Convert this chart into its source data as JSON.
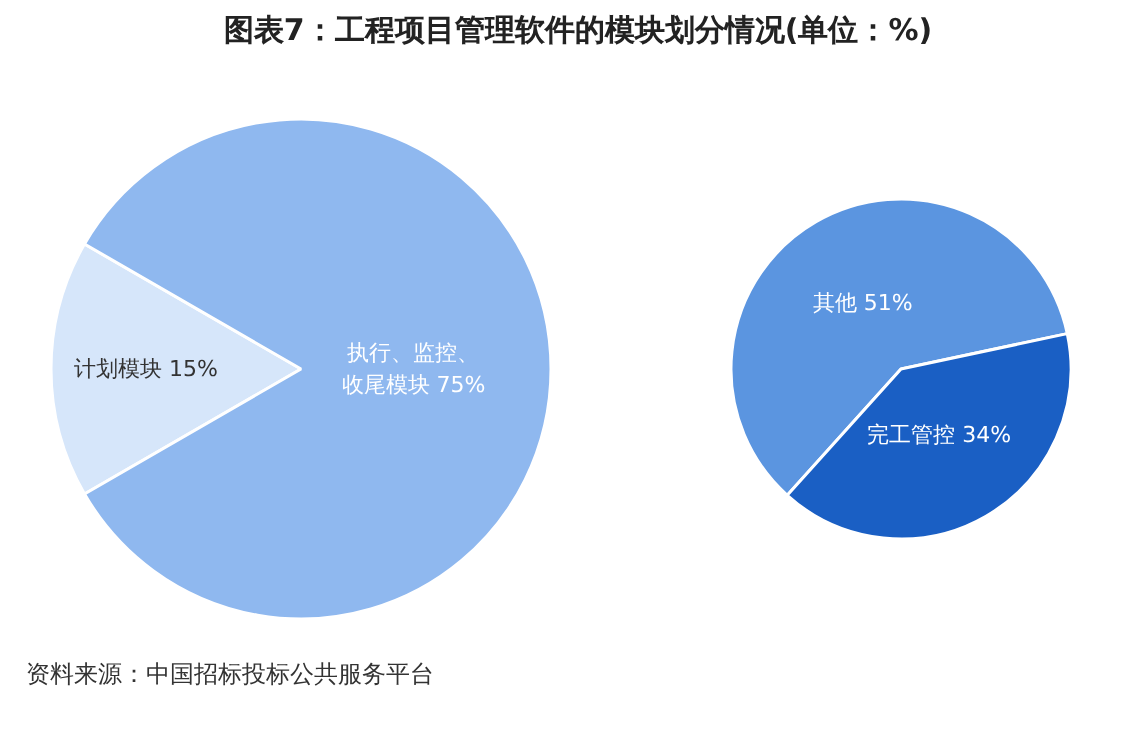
{
  "chart_data": [
    {
      "type": "pie",
      "title": "图表7：工程项目管理软件的模块划分情况(单位：%)",
      "categories": [
        "计划模块",
        "执行、监控、收尾模块"
      ],
      "values": [
        15,
        75
      ],
      "colors": [
        "#d6e6fa",
        "#8fb8ef"
      ],
      "value_labels": [
        "15%",
        "75%"
      ],
      "annotations": [
        "资料来源：中国招标投标公共服务平台"
      ]
    },
    {
      "type": "pie",
      "categories": [
        "其他",
        "完工管控"
      ],
      "values": [
        51,
        34
      ],
      "colors": [
        "#5b95e0",
        "#1a5fc4"
      ],
      "value_labels": [
        "51%",
        "34%"
      ]
    }
  ]
}
